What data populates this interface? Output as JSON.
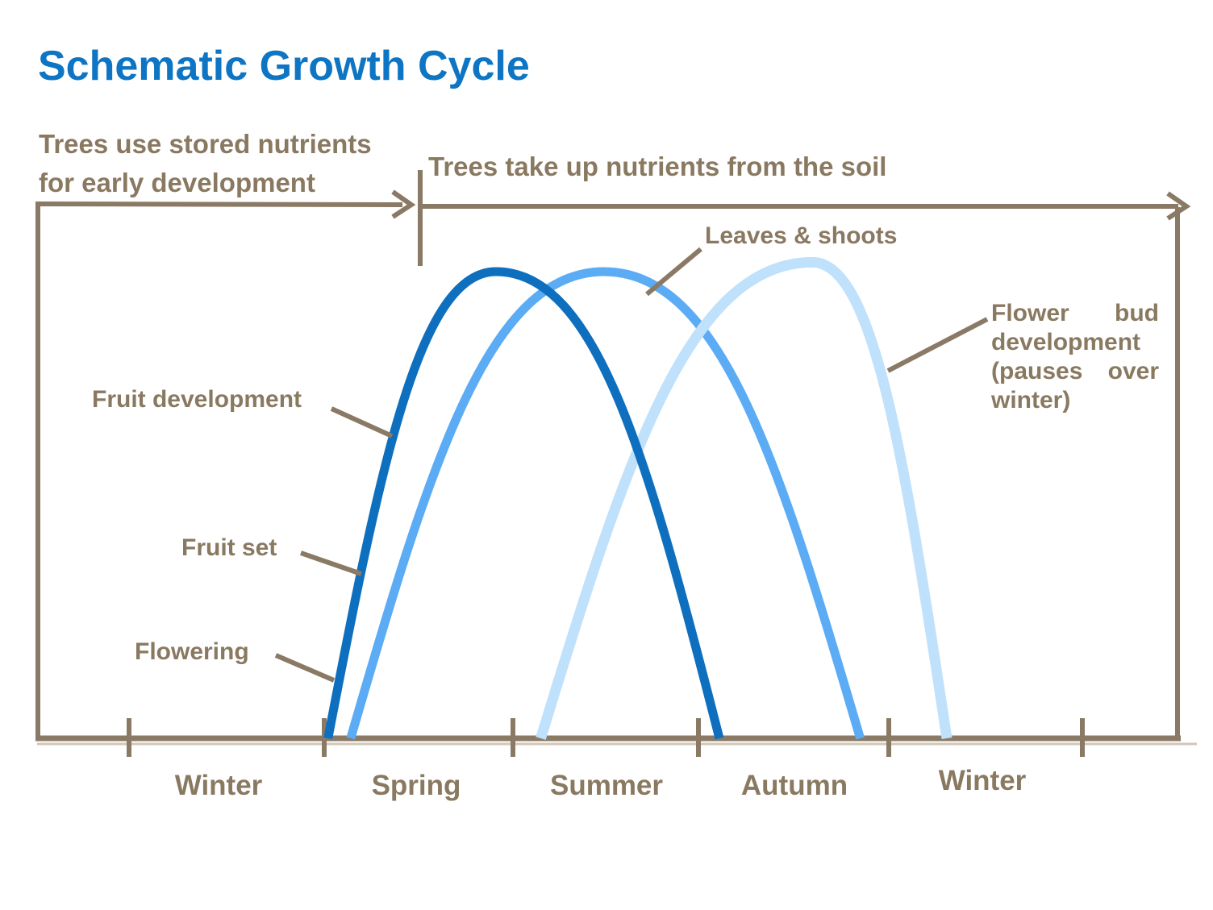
{
  "title": "Schematic Growth Cycle",
  "phase_labels": {
    "stored_line1": "Trees use stored nutrients",
    "stored_line2": "for early development",
    "soil": "Trees take up nutrients from the soil"
  },
  "annotations": {
    "leaves_shoots": "Leaves & shoots",
    "flower_bud": {
      "lines": [
        "Flower bud",
        "development",
        "(pauses over",
        "winter)"
      ]
    },
    "fruit_development": "Fruit development",
    "fruit_set": "Fruit set",
    "flowering": "Flowering"
  },
  "x_axis": {
    "seasons": [
      "Winter",
      "Spring",
      "Summer",
      "Autumn",
      "Winter"
    ]
  },
  "colors": {
    "title_blue": "#0d75c3",
    "text_brown": "#8a7961",
    "line_brown": "#8a7a65",
    "shadow_brown": "#cdc2b0",
    "curve_dark": "#0d6fbe",
    "curve_medium": "#5babf5",
    "curve_light": "#c0e1fb"
  },
  "chart_data": {
    "type": "line",
    "title": "Schematic Growth Cycle",
    "description": "Three schematic bell curves of tree activity plotted across the seasons; no numeric y-axis, heights are relative intensity (0-1).",
    "x_axis": {
      "categories": [
        "Winter",
        "Spring",
        "Summer",
        "Autumn",
        "Winter"
      ],
      "range_season_units": [
        0,
        5
      ],
      "gridlines": false
    },
    "y_axis": {
      "visible": false,
      "range": [
        0,
        1.05
      ]
    },
    "phases": [
      {
        "label": "Trees use stored nutrients for early development",
        "season_span": [
          0,
          1.6
        ]
      },
      {
        "label": "Trees take up nutrients from the soil",
        "season_span": [
          1.6,
          5
        ]
      }
    ],
    "series": [
      {
        "name": "Flowering / Fruit set / Fruit development",
        "color": "#0d6fbe",
        "season_start": 1.02,
        "season_peak": 1.91,
        "season_end": 3.11,
        "peak_value": 1.0
      },
      {
        "name": "Leaves & shoots",
        "color": "#5babf5",
        "season_start": 1.14,
        "season_peak": 2.49,
        "season_end": 3.85,
        "peak_value": 1.0
      },
      {
        "name": "Flower bud development (pauses over winter)",
        "color": "#c0e1fb",
        "season_start": 2.15,
        "season_peak": 3.6,
        "season_end": 4.3,
        "peak_value": 1.02
      }
    ]
  }
}
